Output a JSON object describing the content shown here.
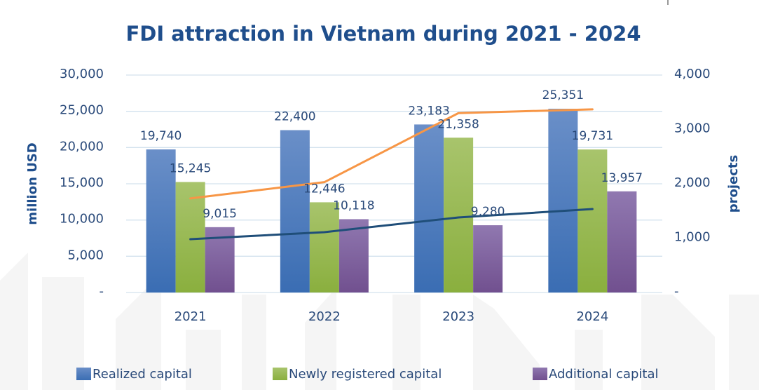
{
  "chart_data": {
    "type": "bar",
    "title": "FDI attraction in Vietnam during 2021 - 2024",
    "categories": [
      "2021",
      "2022",
      "2023",
      "2024"
    ],
    "xlabel": "",
    "ylabel": "million USD",
    "y2label": "projects",
    "ylim": [
      0,
      30000
    ],
    "y2lim": [
      0,
      4000
    ],
    "yticks": [
      0,
      5000,
      10000,
      15000,
      20000,
      25000,
      30000
    ],
    "ytick_labels": [
      "-",
      "5,000",
      "10,000",
      "15,000",
      "20,000",
      "25,000",
      "30,000"
    ],
    "y2ticks": [
      0,
      1000,
      2000,
      3000,
      4000
    ],
    "y2tick_labels": [
      "-",
      "1,000",
      "2,000",
      "3,000",
      "4,000"
    ],
    "grid": true,
    "legend_position": "bottom",
    "series": [
      {
        "name": "Realized capital",
        "kind": "bar",
        "axis": "left",
        "color_top": "#6a8fc8",
        "color_bottom": "#3a6db3",
        "values": [
          19740,
          22400,
          23183,
          25351
        ],
        "labels": [
          "19,740",
          "22,400",
          "23,183",
          "25,351"
        ]
      },
      {
        "name": "Newly registered capital",
        "kind": "bar",
        "axis": "left",
        "color_top": "#a8c46c",
        "color_bottom": "#8aaf3e",
        "values": [
          15245,
          12446,
          21358,
          19731
        ],
        "labels": [
          "15,245",
          "12,446",
          "21,358",
          "19,731"
        ]
      },
      {
        "name": "Additional capital",
        "kind": "bar",
        "axis": "left",
        "color_top": "#9078b0",
        "color_bottom": "#71508f",
        "values": [
          9015,
          10118,
          9280,
          13957
        ],
        "labels": [
          "9,015",
          "10,118",
          "9,280",
          "13,957"
        ]
      },
      {
        "name": "Projects (orange line)",
        "kind": "line",
        "axis": "right",
        "color": "#f79646",
        "values": [
          1730,
          2030,
          3300,
          3370
        ]
      },
      {
        "name": "Projects (dark line)",
        "kind": "line",
        "axis": "right",
        "color": "#1f4e79",
        "values": [
          980,
          1110,
          1380,
          1535
        ]
      }
    ],
    "legend": [
      {
        "name": "Realized capital",
        "color": "#4f81bd"
      },
      {
        "name": "Newly registered capital",
        "color": "#9bbb59"
      },
      {
        "name": "Additional capital",
        "color": "#8064a2"
      }
    ]
  }
}
